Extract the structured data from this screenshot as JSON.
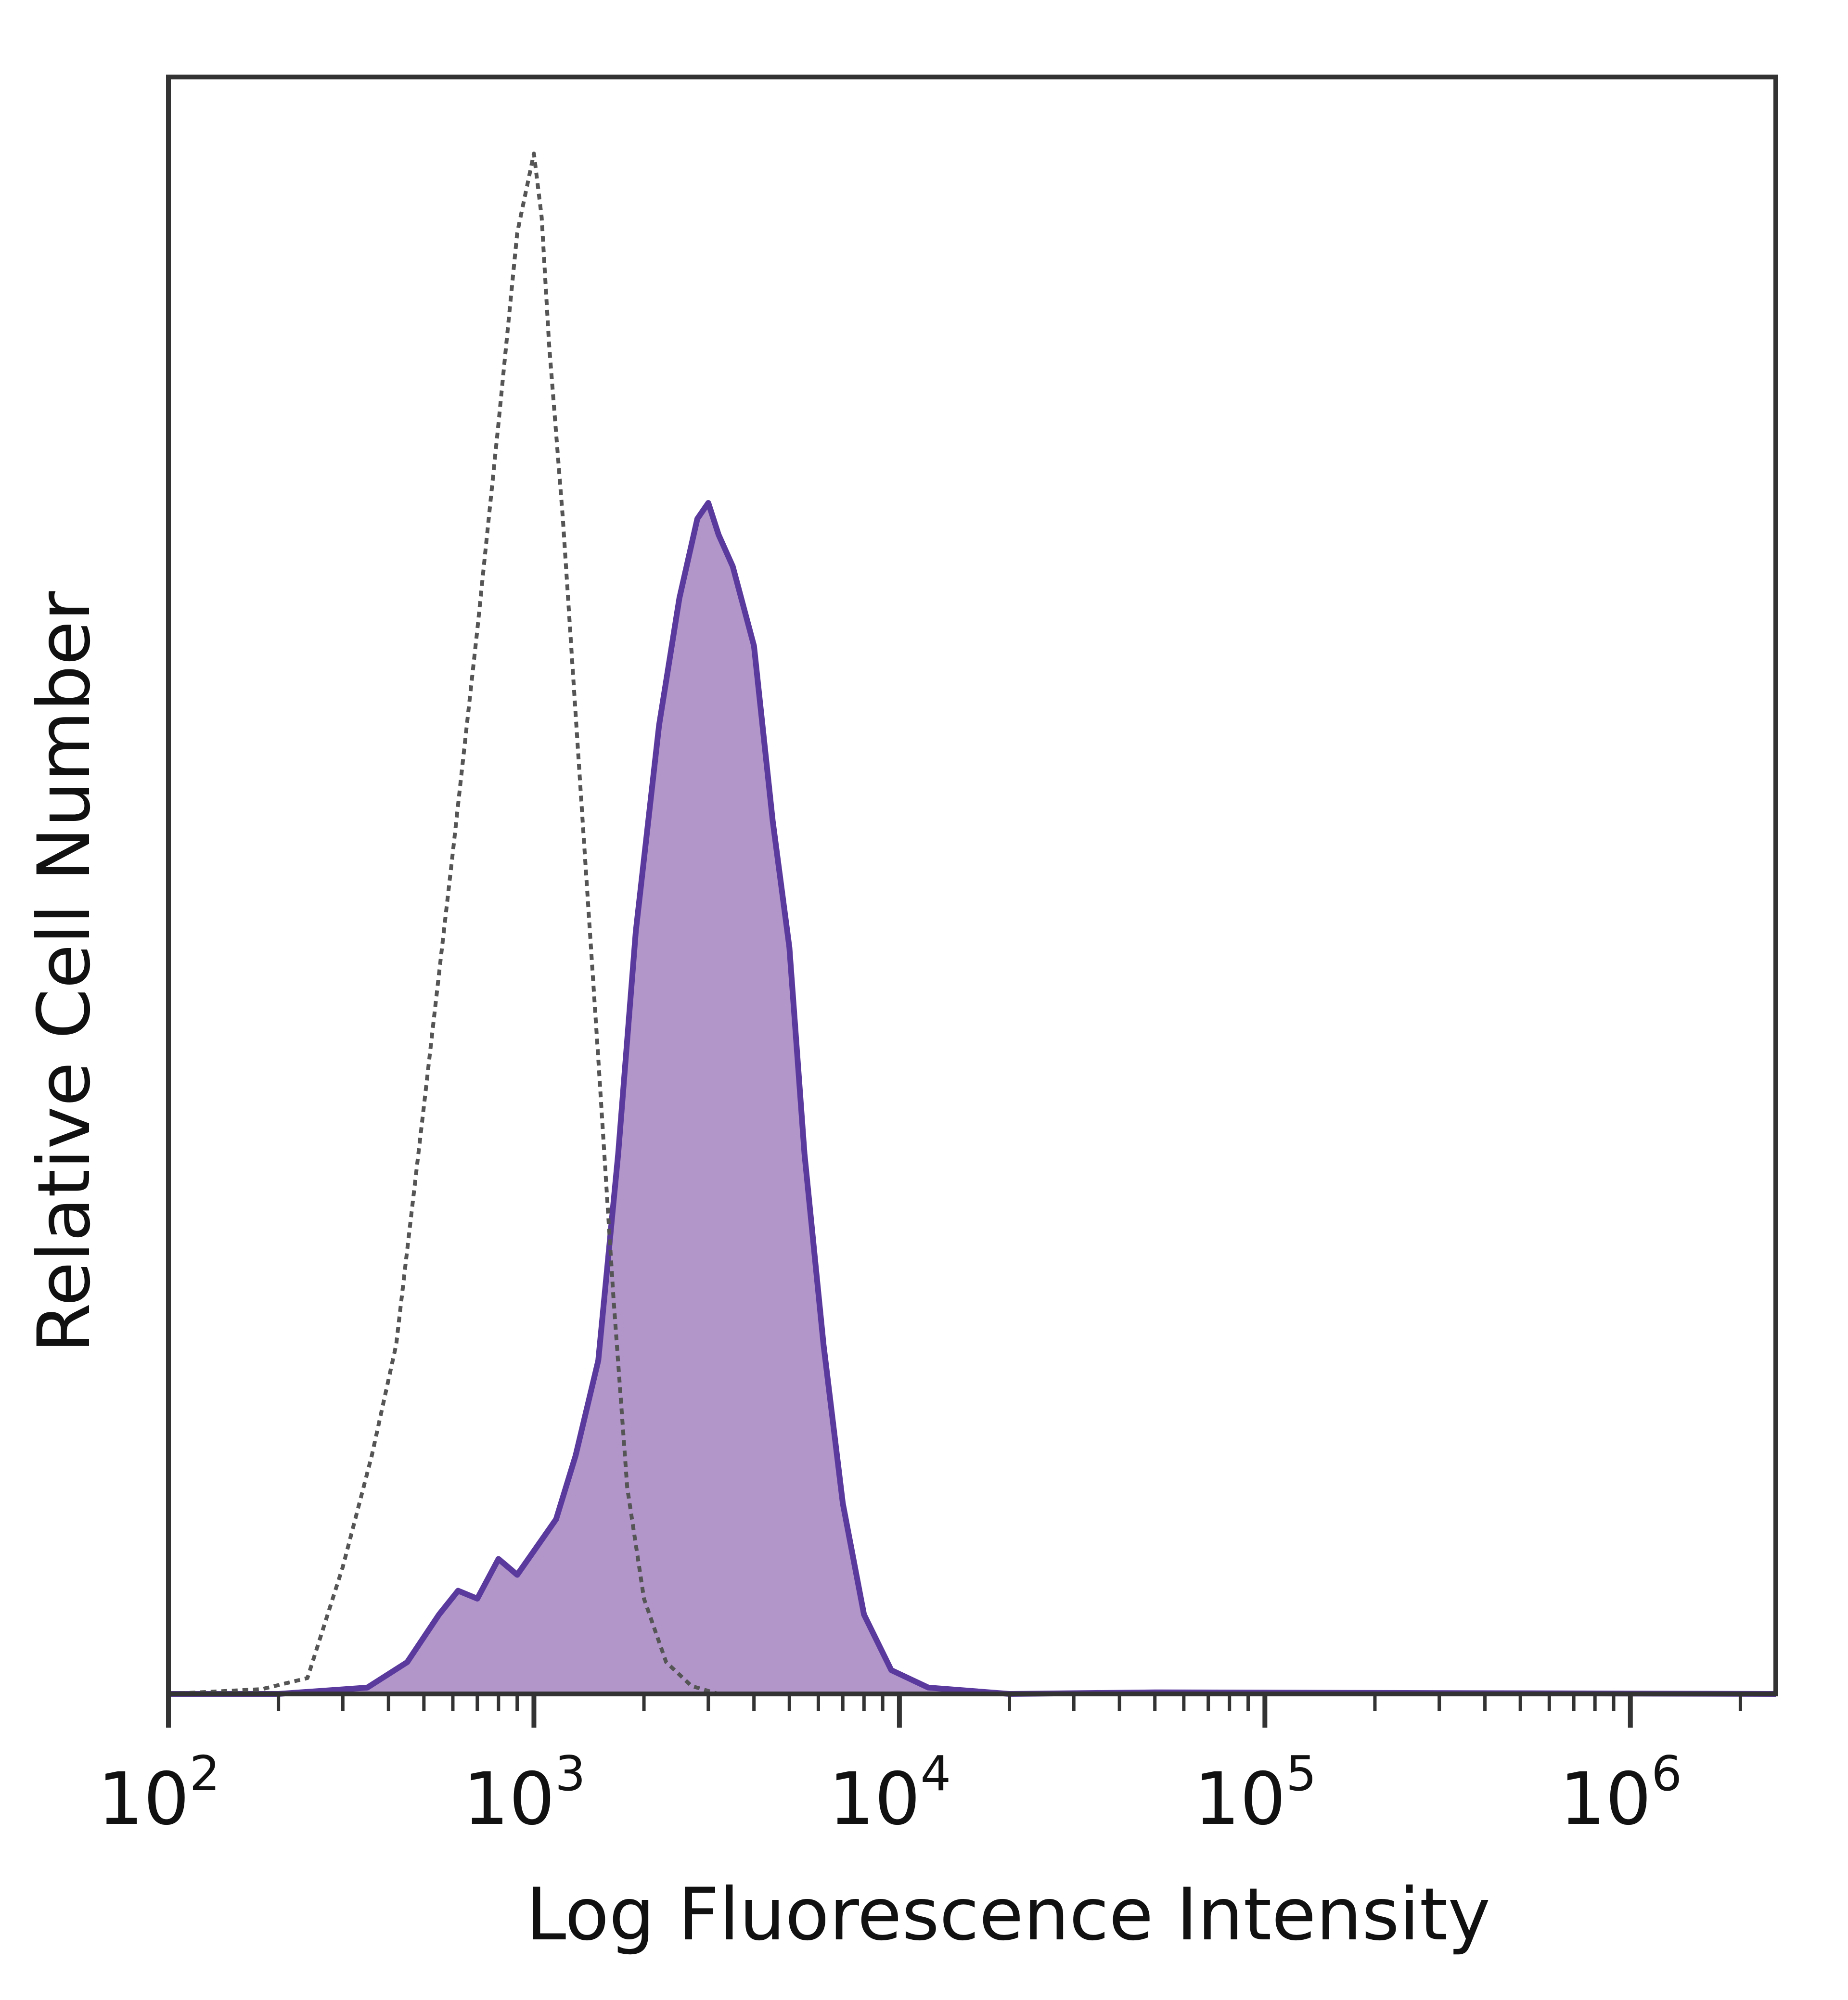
{
  "chart_data": {
    "type": "area",
    "title": "",
    "xlabel": "Log Fluorescence Intensity",
    "ylabel": "Relative Cell Number",
    "x_scale": "log",
    "xlim": [
      100,
      2500000
    ],
    "ylim": [
      0,
      1
    ],
    "grid": false,
    "legend": "none",
    "x_ticks": [
      {
        "base": "10",
        "exp": "2",
        "value": 100
      },
      {
        "base": "10",
        "exp": "3",
        "value": 1000
      },
      {
        "base": "10",
        "exp": "4",
        "value": 10000
      },
      {
        "base": "10",
        "exp": "5",
        "value": 100000
      },
      {
        "base": "10",
        "exp": "6",
        "value": 1000000
      }
    ],
    "series": [
      {
        "style": "dotted-line",
        "color": "#555555",
        "points": [
          [
            100,
            0.0
          ],
          [
            180,
            0.003
          ],
          [
            240,
            0.01
          ],
          [
            300,
            0.08
          ],
          [
            360,
            0.15
          ],
          [
            420,
            0.22
          ],
          [
            500,
            0.37
          ],
          [
            600,
            0.53
          ],
          [
            700,
            0.67
          ],
          [
            800,
            0.8
          ],
          [
            900,
            0.92
          ],
          [
            1000,
            0.97
          ],
          [
            1050,
            0.93
          ],
          [
            1100,
            0.85
          ],
          [
            1200,
            0.74
          ],
          [
            1350,
            0.56
          ],
          [
            1500,
            0.4
          ],
          [
            1650,
            0.25
          ],
          [
            1800,
            0.13
          ],
          [
            2000,
            0.06
          ],
          [
            2300,
            0.02
          ],
          [
            2700,
            0.005
          ],
          [
            3200,
            0.0
          ]
        ]
      },
      {
        "style": "filled-solid-line",
        "color": "#5b3a9e",
        "fill": "#b296ca",
        "points": [
          [
            100,
            0.0
          ],
          [
            200,
            0.0
          ],
          [
            350,
            0.004
          ],
          [
            450,
            0.02
          ],
          [
            550,
            0.05
          ],
          [
            620,
            0.065
          ],
          [
            700,
            0.06
          ],
          [
            800,
            0.085
          ],
          [
            900,
            0.075
          ],
          [
            1000,
            0.09
          ],
          [
            1150,
            0.11
          ],
          [
            1300,
            0.15
          ],
          [
            1500,
            0.21
          ],
          [
            1700,
            0.34
          ],
          [
            1900,
            0.48
          ],
          [
            2200,
            0.61
          ],
          [
            2500,
            0.69
          ],
          [
            2800,
            0.74
          ],
          [
            3000,
            0.75
          ],
          [
            3200,
            0.73
          ],
          [
            3500,
            0.71
          ],
          [
            4000,
            0.66
          ],
          [
            4500,
            0.55
          ],
          [
            5000,
            0.47
          ],
          [
            5500,
            0.34
          ],
          [
            6200,
            0.22
          ],
          [
            7000,
            0.12
          ],
          [
            8000,
            0.05
          ],
          [
            9500,
            0.015
          ],
          [
            12000,
            0.004
          ],
          [
            20000,
            0.0
          ],
          [
            50000,
            0.001
          ],
          [
            2500000,
            0.0
          ]
        ]
      }
    ]
  }
}
